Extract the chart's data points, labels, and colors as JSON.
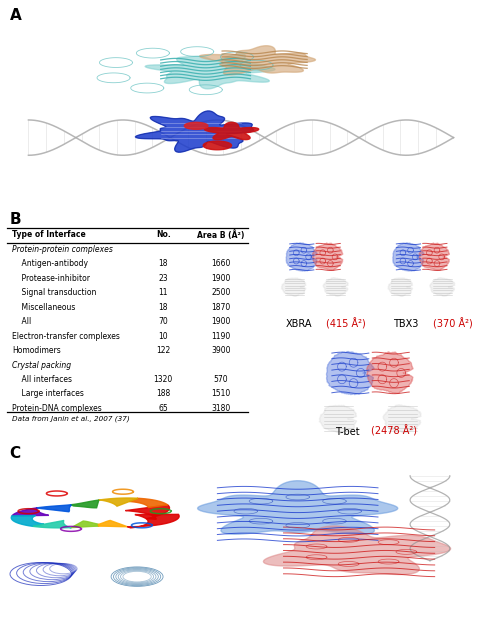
{
  "panel_A_label": "A",
  "panel_B_label": "B",
  "panel_C_label": "C",
  "table_header": [
    "Type of Interface",
    "No.",
    "Area B (Å²)"
  ],
  "table_rows": [
    [
      "Protein-protein complexes",
      "",
      ""
    ],
    [
      "    Antigen-antibody",
      "18",
      "1660"
    ],
    [
      "    Protease-inhibitor",
      "23",
      "1900"
    ],
    [
      "    Signal transduction",
      "11",
      "2500"
    ],
    [
      "    Miscellaneous",
      "18",
      "1870"
    ],
    [
      "    All",
      "70",
      "1900"
    ],
    [
      "Electron-transfer complexes",
      "10",
      "1190"
    ],
    [
      "Homodimers",
      "122",
      "3900"
    ],
    [
      "Crystal packing",
      "",
      ""
    ],
    [
      "    All interfaces",
      "1320",
      "570"
    ],
    [
      "    Large interfaces",
      "188",
      "1510"
    ],
    [
      "Protein-DNA complexes",
      "65",
      "3180"
    ]
  ],
  "table_note": "Data from Janin et al., 2007 (37)",
  "xbra_label": "XBRA",
  "xbra_area": "415 Å²",
  "tbx3_label": "TBX3",
  "tbx3_area": "370 Å²",
  "tbet_label": "T-bet",
  "tbet_area": "2478 Å²",
  "red_color": "#cc0000",
  "label_color": "#000000",
  "fig_bg": "#ffffff",
  "panel_label_size": 11,
  "table_font_size": 5.5,
  "note_font_size": 5.2,
  "caption_font_size": 7.0
}
